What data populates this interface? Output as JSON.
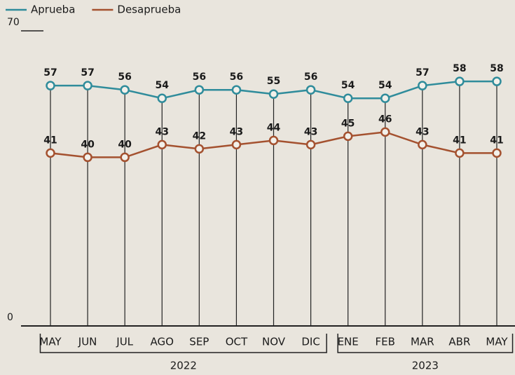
{
  "chart_data": {
    "type": "line",
    "categories": [
      "MAY",
      "JUN",
      "JUL",
      "AGO",
      "SEP",
      "OCT",
      "NOV",
      "DIC",
      "ENE",
      "FEB",
      "MAR",
      "ABR",
      "MAY"
    ],
    "groups": [
      {
        "label": "2022",
        "size": 8
      },
      {
        "label": "2023",
        "size": 5
      }
    ],
    "series": [
      {
        "name": "Aprueba",
        "color": "#2f8c9b",
        "values": [
          57,
          57,
          56,
          54,
          56,
          56,
          55,
          56,
          54,
          54,
          57,
          58,
          58
        ]
      },
      {
        "name": "Desaprueba",
        "color": "#a4512f",
        "values": [
          41,
          40,
          40,
          43,
          42,
          43,
          44,
          43,
          45,
          46,
          43,
          41,
          41
        ]
      }
    ],
    "ylim": [
      0,
      70
    ],
    "yticks": [
      0,
      70
    ],
    "legend": "top-left"
  }
}
